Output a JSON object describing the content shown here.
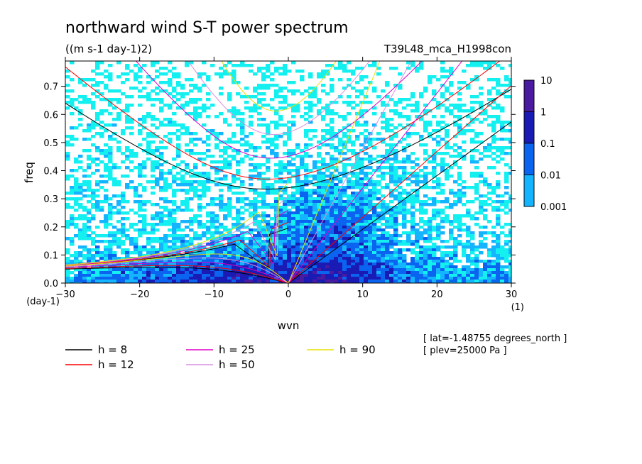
{
  "chart_data": {
    "type": "heatmap",
    "title": "northward wind S-T power spectrum",
    "units": "((m s-1 day-1)2)",
    "run_label": "T39L48_mca_H1998con",
    "xlabel": "wvn",
    "ylabel": "freq",
    "x_unit": "(1)",
    "y_unit": "(day-1)",
    "xlim": [
      -30,
      30
    ],
    "ylim": [
      0,
      0.79
    ],
    "xticks": [
      -30,
      -20,
      -10,
      0,
      10,
      20,
      30
    ],
    "yticks": [
      0.0,
      0.1,
      0.2,
      0.3,
      0.4,
      0.5,
      0.6,
      0.7
    ],
    "colorbar": {
      "levels": [
        "10",
        "1",
        "0.1",
        "0.01",
        "0.001"
      ],
      "colors": [
        "#4a1aa0",
        "#1a1ab4",
        "#0a64f0",
        "#14b4ff",
        "#14f0f0"
      ]
    },
    "equivalent_depths": [
      {
        "label": "h = 8",
        "h": 8,
        "color": "#000000"
      },
      {
        "label": "h = 12",
        "h": 12,
        "color": "#ff0000"
      },
      {
        "label": "h = 25",
        "h": 25,
        "color": "#e000c8"
      },
      {
        "label": "h = 50",
        "h": 50,
        "color": "#d890e0"
      },
      {
        "label": "h = 90",
        "h": 90,
        "color": "#e8e000"
      }
    ],
    "annotations": [
      "[ lat=-1.48755 degrees_north ]",
      "[ plev=25000 Pa ]"
    ]
  }
}
